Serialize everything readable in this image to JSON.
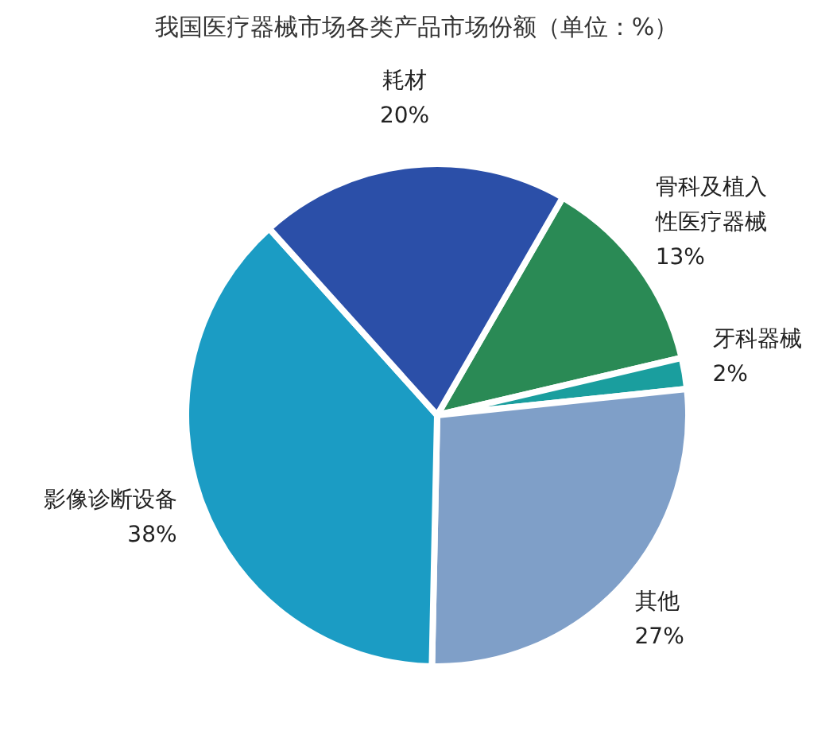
{
  "chart_data": {
    "type": "pie",
    "title": "我国医疗器械市场各类产品市场份额（单位：%）",
    "categories": [
      "骨科及植入性医疗器械",
      "牙科器械",
      "其他",
      "影像诊断设备",
      "耗材"
    ],
    "values": [
      13,
      2,
      27,
      38,
      20
    ],
    "value_labels": [
      "13%",
      "2%",
      "27%",
      "38%",
      "20%"
    ],
    "colors": [
      "#2a8a55",
      "#1a9e9e",
      "#7f9fc8",
      "#1b9cc4",
      "#2b4fa8"
    ]
  }
}
